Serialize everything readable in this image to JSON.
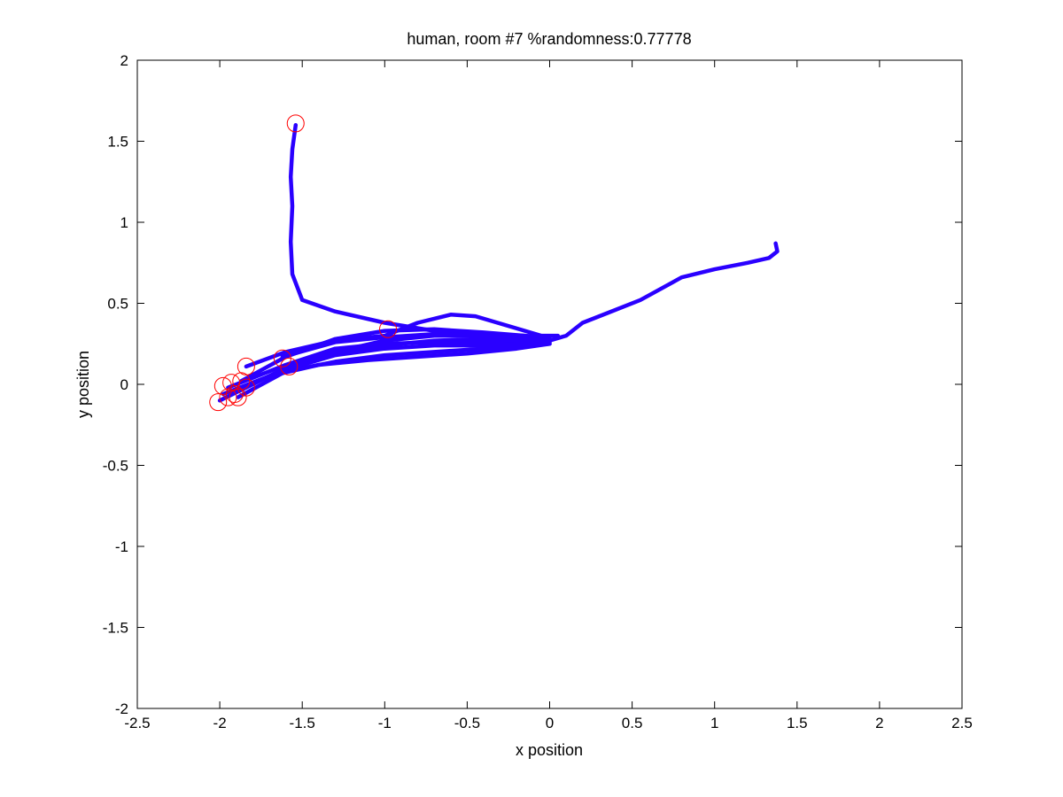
{
  "chart_data": {
    "type": "line",
    "title": "human, room #7 %randomness:0.77778",
    "xlabel": "x position",
    "ylabel": "y position",
    "xlim": [
      -2.5,
      2.5
    ],
    "ylim": [
      -2,
      2
    ],
    "xticks": [
      -2.5,
      -2,
      -1.5,
      -1,
      -0.5,
      0,
      0.5,
      1,
      1.5,
      2,
      2.5
    ],
    "xtick_labels": [
      "-2.5",
      "-2",
      "-1.5",
      "-1",
      "-0.5",
      "0",
      "0.5",
      "1",
      "1.5",
      "2",
      "2.5"
    ],
    "yticks": [
      -2,
      -1.5,
      -1,
      -0.5,
      0,
      0.5,
      1,
      1.5,
      2
    ],
    "ytick_labels": [
      "-2",
      "-1.5",
      "-1",
      "-0.5",
      "0",
      "0.5",
      "1",
      "1.5",
      "2"
    ],
    "grid": false,
    "legend": "none",
    "colors": {
      "path": "#2a00ff",
      "marker": "#ff0000"
    },
    "series": [
      {
        "points": [
          [
            -1.54,
            1.6
          ],
          [
            -1.56,
            1.45
          ],
          [
            -1.57,
            1.28
          ],
          [
            -1.56,
            1.1
          ],
          [
            -1.57,
            0.88
          ],
          [
            -1.56,
            0.68
          ],
          [
            -1.5,
            0.52
          ],
          [
            -1.3,
            0.45
          ],
          [
            -1.0,
            0.38
          ],
          [
            -0.7,
            0.33
          ],
          [
            -0.4,
            0.31
          ],
          [
            -0.15,
            0.3
          ],
          [
            0.0,
            0.29
          ]
        ]
      },
      {
        "points": [
          [
            -1.84,
            0.11
          ],
          [
            -1.6,
            0.2
          ],
          [
            -1.3,
            0.27
          ],
          [
            -1.0,
            0.3
          ],
          [
            -0.8,
            0.38
          ],
          [
            -0.6,
            0.43
          ],
          [
            -0.45,
            0.42
          ],
          [
            -0.25,
            0.36
          ],
          [
            -0.05,
            0.3
          ],
          [
            0.05,
            0.3
          ]
        ]
      },
      {
        "points": [
          [
            -1.87,
            0.02
          ],
          [
            -1.6,
            0.17
          ],
          [
            -1.3,
            0.28
          ],
          [
            -1.0,
            0.33
          ],
          [
            -0.7,
            0.34
          ],
          [
            -0.4,
            0.32
          ],
          [
            -0.15,
            0.3
          ],
          [
            0.0,
            0.28
          ]
        ]
      },
      {
        "points": [
          [
            -1.91,
            -0.05
          ],
          [
            -1.6,
            0.1
          ],
          [
            -1.3,
            0.2
          ],
          [
            -1.0,
            0.27
          ],
          [
            -0.7,
            0.3
          ],
          [
            -0.4,
            0.3
          ],
          [
            -0.15,
            0.28
          ],
          [
            0.0,
            0.27
          ]
        ]
      },
      {
        "points": [
          [
            -1.95,
            -0.02
          ],
          [
            -1.6,
            0.12
          ],
          [
            -1.3,
            0.22
          ],
          [
            -1.0,
            0.25
          ],
          [
            -0.7,
            0.26
          ],
          [
            -0.4,
            0.26
          ],
          [
            -0.15,
            0.26
          ],
          [
            0.0,
            0.26
          ]
        ]
      },
      {
        "points": [
          [
            -1.98,
            -0.06
          ],
          [
            -1.6,
            0.09
          ],
          [
            -1.3,
            0.18
          ],
          [
            -1.0,
            0.22
          ],
          [
            -0.7,
            0.24
          ],
          [
            -0.4,
            0.24
          ],
          [
            -0.15,
            0.25
          ],
          [
            0.0,
            0.25
          ]
        ]
      },
      {
        "points": [
          [
            -2.0,
            -0.1
          ],
          [
            -1.7,
            0.05
          ],
          [
            -1.4,
            0.12
          ],
          [
            -1.1,
            0.15
          ],
          [
            -0.8,
            0.17
          ],
          [
            -0.5,
            0.19
          ],
          [
            -0.2,
            0.22
          ],
          [
            0.0,
            0.25
          ]
        ]
      },
      {
        "points": [
          [
            -1.89,
            -0.08
          ],
          [
            -1.6,
            0.08
          ],
          [
            -1.3,
            0.14
          ],
          [
            -1.0,
            0.18
          ],
          [
            -0.7,
            0.2
          ],
          [
            -0.4,
            0.22
          ],
          [
            -0.15,
            0.24
          ],
          [
            0.0,
            0.25
          ]
        ]
      },
      {
        "points": [
          [
            -1.62,
            0.17
          ],
          [
            -1.3,
            0.26
          ],
          [
            -1.0,
            0.29
          ],
          [
            -0.7,
            0.31
          ],
          [
            -0.4,
            0.3
          ],
          [
            -0.15,
            0.28
          ],
          [
            0.0,
            0.27
          ]
        ]
      },
      {
        "points": [
          [
            -1.58,
            0.12
          ],
          [
            -1.3,
            0.2
          ],
          [
            -1.0,
            0.24
          ],
          [
            -0.7,
            0.27
          ],
          [
            -0.4,
            0.28
          ],
          [
            -0.15,
            0.27
          ],
          [
            0.0,
            0.26
          ]
        ]
      },
      {
        "points": [
          [
            0.0,
            0.27
          ],
          [
            0.1,
            0.3
          ],
          [
            0.2,
            0.38
          ],
          [
            0.35,
            0.44
          ],
          [
            0.55,
            0.52
          ],
          [
            0.8,
            0.66
          ],
          [
            1.0,
            0.71
          ],
          [
            1.2,
            0.75
          ],
          [
            1.33,
            0.78
          ],
          [
            1.38,
            0.82
          ],
          [
            1.37,
            0.87
          ]
        ]
      }
    ],
    "markers": [
      [
        -1.54,
        1.61
      ],
      [
        -0.98,
        0.34
      ],
      [
        -1.62,
        0.16
      ],
      [
        -1.58,
        0.11
      ],
      [
        -1.84,
        0.11
      ],
      [
        -1.87,
        0.02
      ],
      [
        -1.84,
        -0.02
      ],
      [
        -1.98,
        -0.01
      ],
      [
        -1.93,
        0.01
      ],
      [
        -1.91,
        -0.06
      ],
      [
        -1.95,
        -0.08
      ],
      [
        -1.89,
        -0.08
      ],
      [
        -2.01,
        -0.11
      ]
    ]
  }
}
